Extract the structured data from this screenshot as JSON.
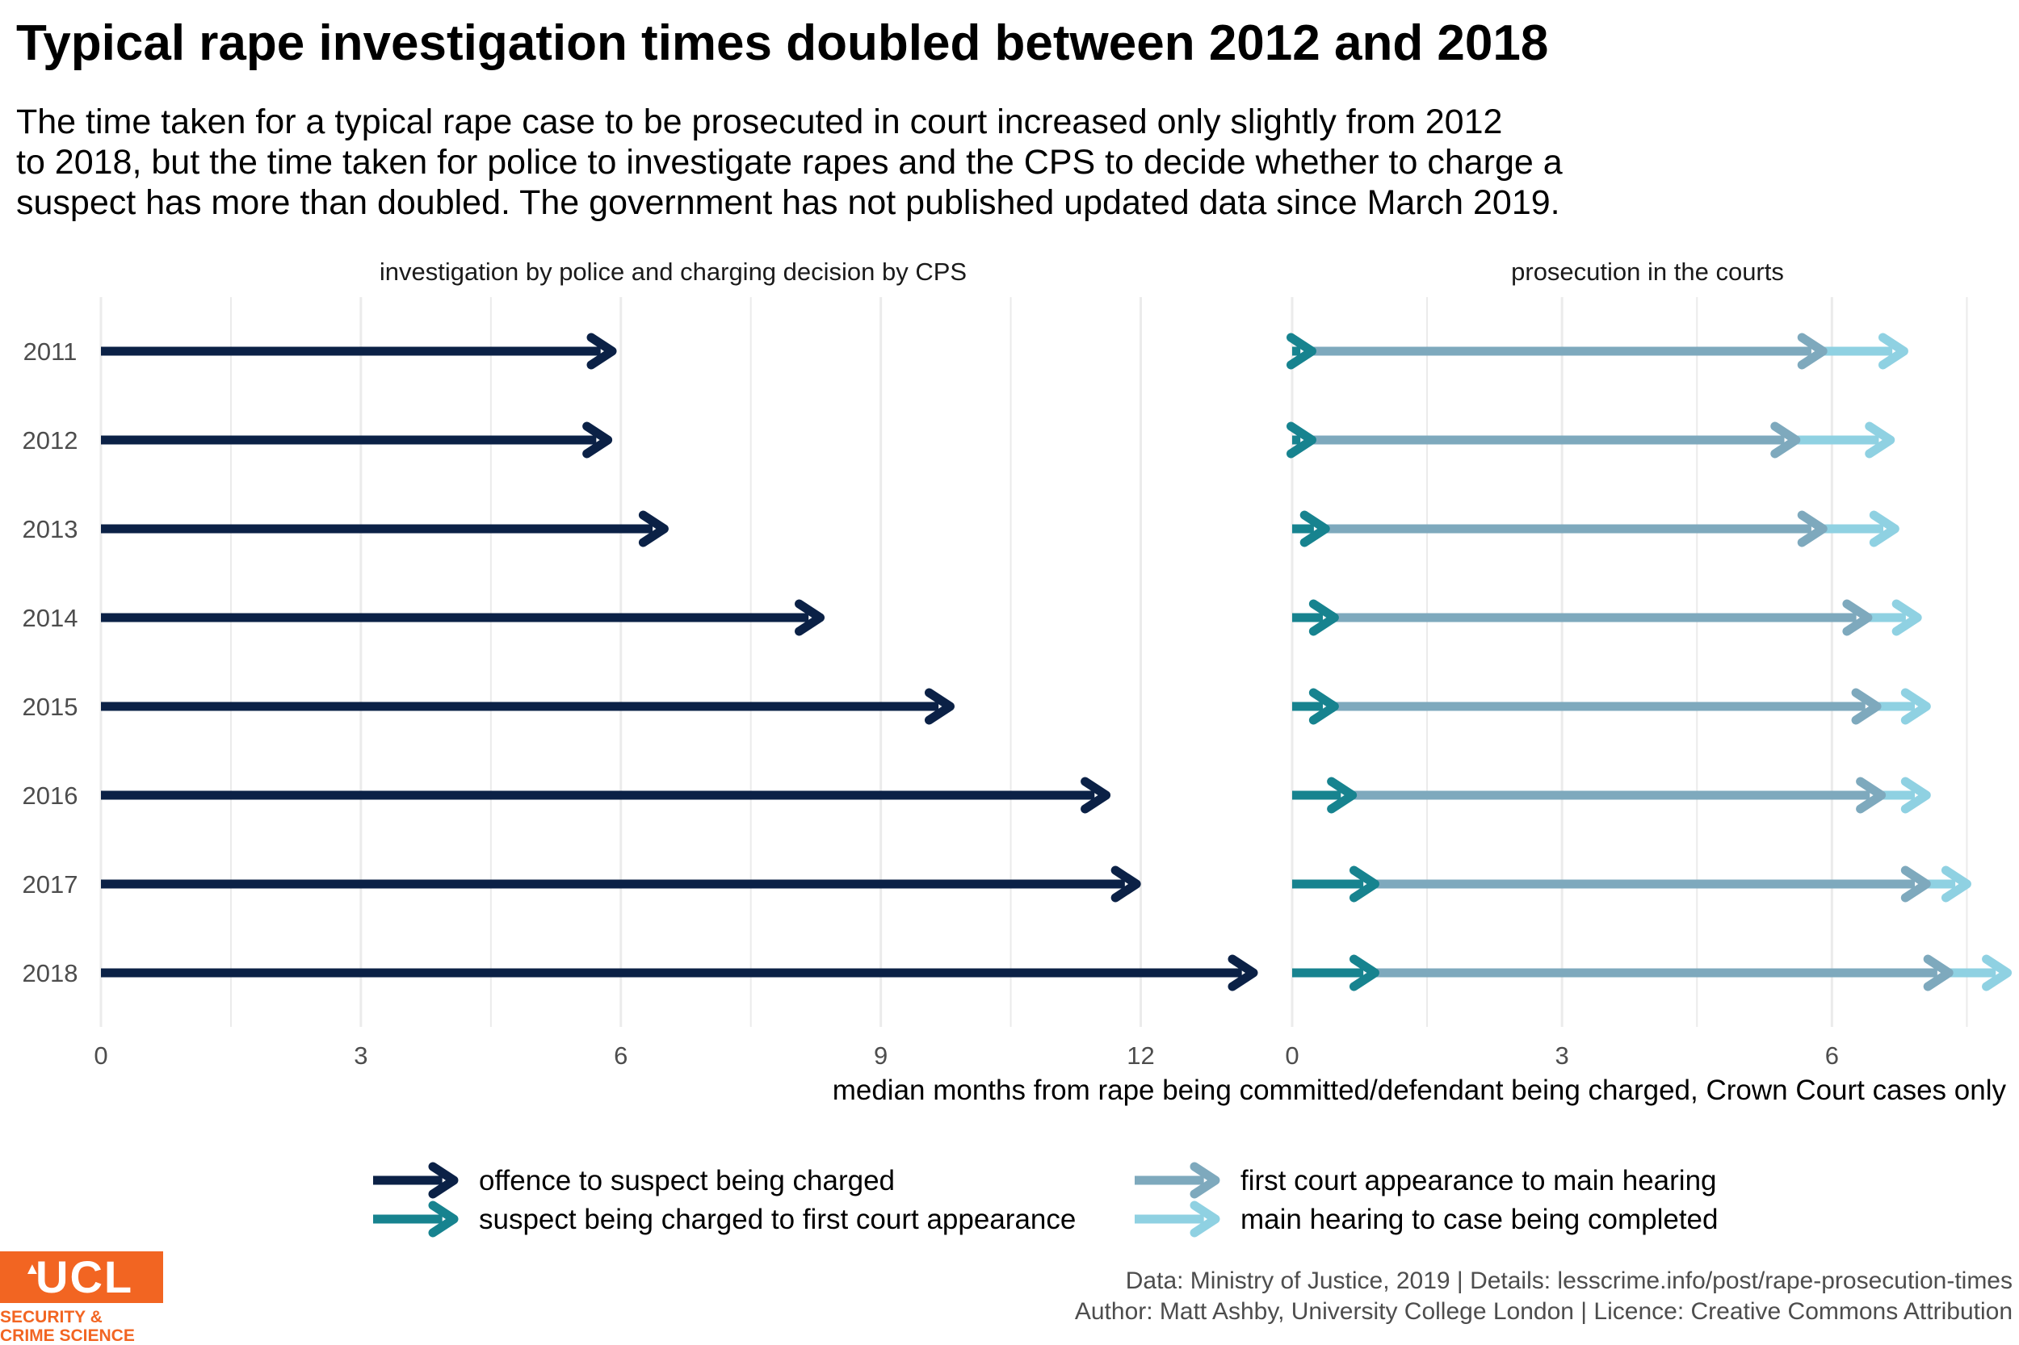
{
  "title": "Typical rape investigation times doubled between 2012 and 2018",
  "subtitle_lines": [
    "The time taken for a typical rape case to be prosecuted in court increased only slightly from 2012",
    "to 2018, but the time taken for police to investigate rapes and the CPS to decide whether to charge a",
    "suspect has more than doubled. The government has not published updated data since March 2019."
  ],
  "caption": {
    "line1": "Data: Ministry of Justice, 2019 |  Details: lesscrime.info/post/rape-prosecution-times",
    "line2": "Author: Matt Ashby, University College London |  Licence: Creative Commons Attribution"
  },
  "logo": {
    "word": "UCL",
    "line1": "SECURITY &",
    "line2": "CRIME SCIENCE"
  },
  "colors": {
    "offence_to_charge": "#0b2146",
    "charge_to_first_court": "#17838f",
    "first_court_to_main_hearing": "#7ea9bd",
    "main_hearing_to_completion": "#8fd1e2",
    "gridline": "#ebebeb",
    "logo_orange": "#f26522"
  },
  "chart_data": {
    "type": "arrow-range",
    "xlabel": "median months from rape being committed/defendant being charged, Crown Court cases only",
    "categories": [
      "2011",
      "2012",
      "2013",
      "2014",
      "2015",
      "2016",
      "2017",
      "2018"
    ],
    "grid": true,
    "legend_position": "bottom",
    "series": [
      {
        "name": "offence to suspect being charged",
        "color_key": "offence_to_charge"
      },
      {
        "name": "suspect being charged to first court appearance",
        "color_key": "charge_to_first_court"
      },
      {
        "name": "first court appearance to main hearing",
        "color_key": "first_court_to_main_hearing"
      },
      {
        "name": "main hearing to case being completed",
        "color_key": "main_hearing_to_completion"
      }
    ],
    "panels": [
      {
        "title": "investigation by police and charging decision by CPS",
        "xlim": [
          0,
          13.3
        ],
        "xticks": [
          0,
          3,
          6,
          9,
          12
        ],
        "rows": [
          {
            "year": "2011",
            "offence_to_charge": 5.9
          },
          {
            "year": "2012",
            "offence_to_charge": 5.85
          },
          {
            "year": "2013",
            "offence_to_charge": 6.5
          },
          {
            "year": "2014",
            "offence_to_charge": 8.3
          },
          {
            "year": "2015",
            "offence_to_charge": 9.8
          },
          {
            "year": "2016",
            "offence_to_charge": 11.6
          },
          {
            "year": "2017",
            "offence_to_charge": 11.95
          },
          {
            "year": "2018",
            "offence_to_charge": 13.3
          }
        ]
      },
      {
        "title": "prosecution in the courts",
        "xlim": [
          0,
          7.9
        ],
        "xticks": [
          0,
          3,
          6
        ],
        "rows": [
          {
            "year": "2011",
            "charge_to_first_court": 0.15,
            "first_court_to_main_hearing": 5.9,
            "main_hearing_to_completion": 6.8
          },
          {
            "year": "2012",
            "charge_to_first_court": 0.15,
            "first_court_to_main_hearing": 5.6,
            "main_hearing_to_completion": 6.65
          },
          {
            "year": "2013",
            "charge_to_first_court": 0.3,
            "first_court_to_main_hearing": 5.9,
            "main_hearing_to_completion": 6.7
          },
          {
            "year": "2014",
            "charge_to_first_court": 0.4,
            "first_court_to_main_hearing": 6.4,
            "main_hearing_to_completion": 6.95
          },
          {
            "year": "2015",
            "charge_to_first_court": 0.4,
            "first_court_to_main_hearing": 6.5,
            "main_hearing_to_completion": 7.05
          },
          {
            "year": "2016",
            "charge_to_first_court": 0.6,
            "first_court_to_main_hearing": 6.55,
            "main_hearing_to_completion": 7.05
          },
          {
            "year": "2017",
            "charge_to_first_court": 0.85,
            "first_court_to_main_hearing": 7.05,
            "main_hearing_to_completion": 7.5
          },
          {
            "year": "2018",
            "charge_to_first_court": 0.85,
            "first_court_to_main_hearing": 7.3,
            "main_hearing_to_completion": 7.95
          }
        ]
      }
    ]
  }
}
